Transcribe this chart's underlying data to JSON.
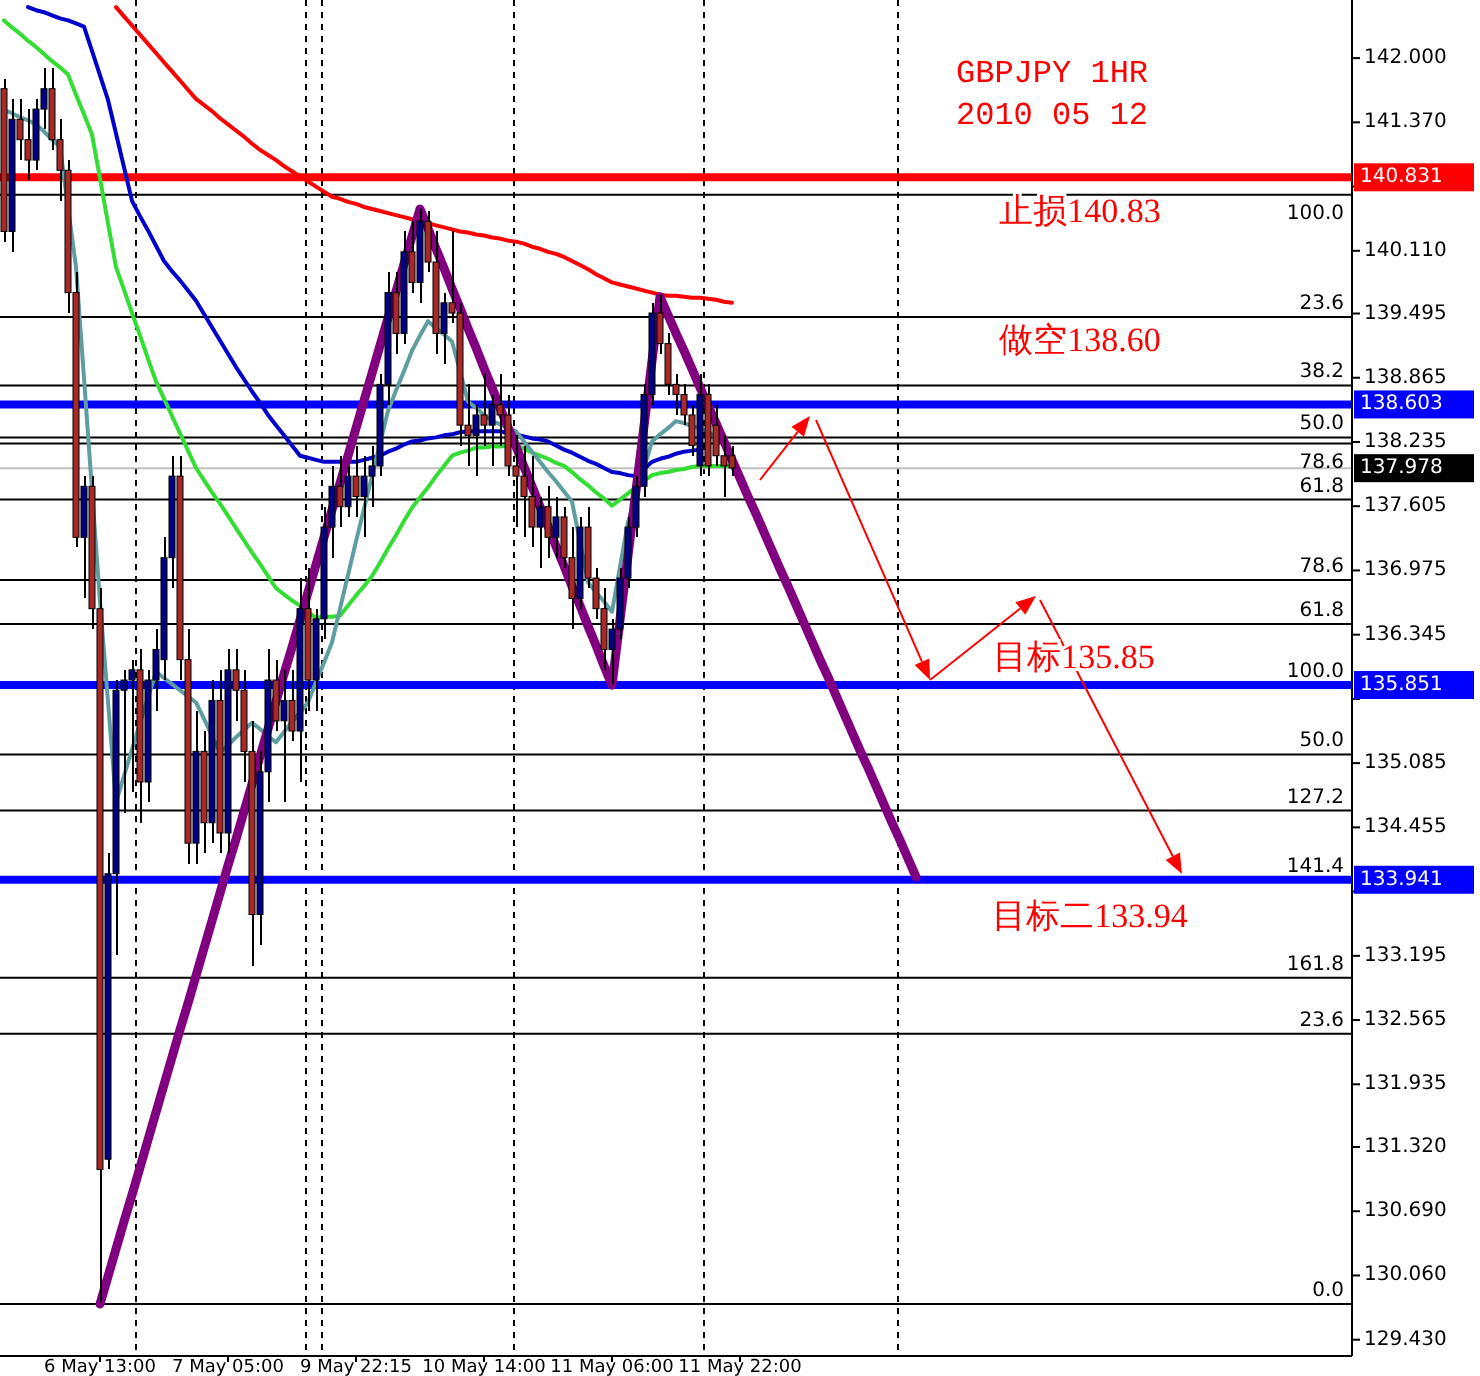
{
  "chart_data": {
    "type": "candlestick",
    "title": "GBPJPY 1HR",
    "subtitle": "2010 05 12",
    "ylim": [
      129.27,
      142.57
    ],
    "categories": [
      null,
      null,
      null,
      null,
      null,
      null,
      null,
      null,
      null,
      null,
      null,
      null,
      "6 May 13:00",
      null,
      null,
      null,
      null,
      null,
      null,
      null,
      null,
      null,
      null,
      null,
      null,
      null,
      null,
      null,
      "7 May 05:00",
      null,
      null,
      null,
      null,
      null,
      null,
      null,
      null,
      null,
      null,
      null,
      null,
      null,
      null,
      null,
      "9 May 22:15",
      null,
      null,
      null,
      null,
      null,
      null,
      null,
      null,
      null,
      null,
      null,
      null,
      null,
      null,
      null,
      "10 May 14:00",
      null,
      null,
      null,
      null,
      null,
      null,
      null,
      null,
      null,
      null,
      null,
      null,
      null,
      null,
      null,
      "11 May 06:00",
      null,
      null,
      null,
      null,
      null,
      null,
      null,
      null,
      null,
      null,
      null,
      null,
      null,
      null,
      null,
      "11 May 22:00",
      null,
      null,
      null,
      null,
      null,
      null,
      null,
      null,
      null,
      null,
      null,
      null,
      null,
      null,
      null,
      null,
      null,
      null,
      null,
      null,
      null,
      null,
      null,
      null,
      null,
      null,
      null,
      null,
      null,
      null,
      null,
      null,
      null,
      null,
      null,
      null,
      null,
      null,
      null,
      null,
      null,
      null,
      null,
      null,
      null,
      null,
      null,
      null,
      null,
      null,
      null,
      null,
      null,
      null,
      null,
      null,
      null,
      null,
      null,
      null,
      null,
      null,
      null,
      null,
      null,
      null,
      null,
      null,
      null,
      null,
      null,
      null,
      null,
      null,
      null,
      null
    ],
    "yticks": [
      {
        "value": 142,
        "label": "142.000"
      },
      {
        "value": 141.37,
        "label": "141.370"
      },
      {
        "value": 140.74,
        "label": null
      },
      {
        "value": 140.11,
        "label": "140.110"
      },
      139.495,
      138.865,
      138.235,
      137.605,
      136.975,
      136.345,
      {
        "value": 135.715,
        "label": null
      },
      135.085,
      134.455,
      {
        "value": 133.825,
        "label": null
      },
      133.195,
      132.565,
      131.935,
      {
        "value": 131.32,
        "label": "131.320"
      },
      {
        "value": 130.69,
        "label": "130.690"
      },
      {
        "value": 130.06,
        "label": "130.060"
      },
      {
        "value": 129.43,
        "label": "129.430"
      }
    ],
    "ohlc": [
      [
        141.7,
        141.8,
        140.2,
        140.3
      ],
      [
        140.3,
        141.6,
        140.1,
        141.4
      ],
      [
        141.4,
        141.6,
        141.0,
        141.2
      ],
      [
        141.2,
        141.5,
        140.8,
        141.0
      ],
      [
        141.0,
        141.6,
        140.9,
        141.5
      ],
      [
        141.5,
        141.9,
        141.3,
        141.7
      ],
      [
        141.7,
        141.9,
        141.1,
        141.2
      ],
      [
        141.2,
        141.4,
        140.6,
        140.9
      ],
      [
        140.9,
        141.0,
        139.5,
        139.7
      ],
      [
        139.7,
        139.9,
        137.2,
        137.3
      ],
      [
        137.3,
        137.9,
        136.7,
        137.8
      ],
      [
        137.8,
        137.9,
        136.4,
        136.6
      ],
      [
        136.6,
        136.8,
        129.8,
        131.1
      ],
      [
        131.2,
        134.2,
        131.1,
        134.0
      ],
      [
        134.0,
        135.9,
        133.2,
        135.8
      ],
      [
        135.8,
        136.0,
        134.6,
        135.9
      ],
      [
        135.9,
        136.1,
        134.8,
        136.0
      ],
      [
        136.0,
        136.2,
        134.5,
        134.9
      ],
      [
        134.9,
        136.0,
        134.7,
        135.9
      ],
      [
        135.9,
        136.4,
        135.6,
        136.2
      ],
      [
        136.1,
        137.3,
        135.9,
        137.1
      ],
      [
        137.1,
        138.1,
        136.8,
        137.9
      ],
      [
        137.9,
        138.1,
        135.9,
        136.1
      ],
      [
        136.1,
        136.4,
        134.1,
        134.3
      ],
      [
        134.3,
        135.6,
        134.1,
        135.2
      ],
      [
        135.2,
        135.4,
        134.2,
        134.5
      ],
      [
        134.5,
        135.9,
        134.3,
        135.7
      ],
      [
        135.7,
        136.0,
        134.2,
        134.4
      ],
      [
        134.4,
        136.2,
        134.2,
        136.0
      ],
      [
        136.0,
        136.2,
        135.5,
        135.8
      ],
      [
        135.8,
        136.0,
        134.9,
        135.2
      ],
      [
        135.2,
        135.5,
        133.1,
        133.6
      ],
      [
        133.6,
        135.2,
        133.3,
        135.0
      ],
      [
        135.0,
        136.2,
        134.7,
        135.9
      ],
      [
        135.9,
        136.1,
        135.4,
        135.5
      ],
      [
        135.5,
        136.0,
        134.7,
        135.7
      ],
      [
        135.7,
        136.0,
        135.3,
        135.4
      ],
      [
        135.4,
        136.9,
        134.9,
        136.6
      ],
      [
        136.6,
        137.0,
        135.6,
        135.9
      ],
      [
        135.9,
        136.6,
        135.6,
        136.5
      ],
      [
        136.5,
        137.6,
        136.3,
        137.4
      ],
      [
        137.4,
        138.0,
        137.1,
        137.8
      ],
      [
        137.8,
        138.1,
        137.4,
        137.6
      ],
      [
        137.6,
        138.0,
        137.5,
        137.9
      ],
      [
        137.9,
        138.2,
        137.5,
        137.7
      ],
      [
        137.7,
        138.1,
        137.3,
        137.9
      ],
      [
        137.9,
        138.2,
        137.6,
        138.0
      ],
      [
        138.0,
        138.9,
        137.9,
        138.8
      ],
      [
        138.8,
        139.9,
        138.6,
        139.7
      ],
      [
        139.7,
        139.9,
        139.1,
        139.3
      ],
      [
        139.3,
        140.3,
        139.2,
        140.1
      ],
      [
        140.1,
        140.4,
        139.7,
        139.8
      ],
      [
        139.8,
        140.52,
        139.6,
        140.4
      ],
      [
        140.4,
        140.5,
        139.9,
        140.0
      ],
      [
        140.0,
        140.3,
        139.1,
        139.3
      ],
      [
        139.3,
        139.7,
        139.0,
        139.6
      ],
      [
        139.6,
        140.3,
        139.4,
        139.5
      ],
      [
        139.5,
        139.6,
        138.2,
        138.4
      ],
      [
        138.4,
        138.8,
        138.0,
        138.3
      ],
      [
        138.3,
        138.6,
        137.9,
        138.5
      ],
      [
        138.5,
        138.9,
        138.2,
        138.4
      ],
      [
        138.4,
        138.7,
        138.0,
        138.6
      ],
      [
        138.6,
        138.9,
        138.2,
        138.5
      ],
      [
        138.5,
        138.7,
        137.9,
        138.0
      ],
      [
        138.0,
        138.3,
        137.4,
        137.9
      ],
      [
        137.9,
        138.2,
        137.3,
        137.7
      ],
      [
        137.7,
        138.1,
        137.2,
        137.4
      ],
      [
        137.4,
        137.7,
        137.0,
        137.6
      ],
      [
        137.6,
        137.8,
        137.1,
        137.3
      ],
      [
        137.3,
        137.7,
        137.1,
        137.5
      ],
      [
        137.5,
        137.6,
        137.0,
        137.1
      ],
      [
        137.1,
        137.4,
        136.4,
        136.7
      ],
      [
        136.7,
        137.5,
        136.6,
        137.4
      ],
      [
        137.4,
        137.6,
        136.8,
        136.9
      ],
      [
        136.9,
        137.0,
        136.5,
        136.6
      ],
      [
        136.6,
        136.8,
        136.0,
        136.2
      ],
      [
        136.2,
        136.5,
        135.85,
        136.4
      ],
      [
        136.4,
        137.0,
        136.3,
        136.9
      ],
      [
        136.9,
        137.5,
        136.8,
        137.4
      ],
      [
        137.4,
        137.9,
        137.3,
        137.8
      ],
      [
        137.8,
        138.8,
        137.7,
        138.7
      ],
      [
        138.7,
        139.6,
        138.6,
        139.5
      ],
      [
        139.5,
        139.68,
        139.1,
        139.2
      ],
      [
        139.2,
        139.3,
        138.7,
        138.8
      ],
      [
        138.8,
        138.9,
        138.5,
        138.7
      ],
      [
        138.7,
        138.8,
        138.4,
        138.5
      ],
      [
        138.5,
        138.6,
        138.1,
        138.2
      ],
      [
        138.0,
        138.9,
        137.9,
        138.7
      ],
      [
        138.7,
        138.8,
        137.9,
        138.0
      ],
      [
        138.4,
        138.6,
        138.0,
        138.1
      ],
      [
        138.1,
        138.3,
        137.7,
        138.0
      ],
      [
        138.1,
        138.2,
        137.9,
        137.98
      ],
      null,
      null,
      null,
      null,
      null,
      null,
      null,
      null,
      null,
      null,
      null,
      null,
      null,
      null,
      null,
      null,
      null,
      null,
      null,
      null,
      null,
      null,
      null,
      null,
      null,
      null,
      null,
      null,
      null,
      null,
      null,
      null,
      null,
      null,
      null,
      null,
      null,
      null,
      null,
      null,
      null,
      null,
      null,
      null,
      null,
      null,
      null,
      null,
      null,
      null,
      null,
      null,
      null,
      null,
      null,
      null,
      null,
      null,
      null,
      null,
      null,
      null,
      null,
      null,
      null,
      null,
      null,
      null,
      null,
      null,
      null,
      null,
      null,
      null,
      null,
      null,
      null
    ],
    "colors": [
      "#a52a2a",
      "#000080",
      "#a52a2a",
      "#a52a2a",
      "#000080",
      "#000080",
      "#a52a2a",
      "#a52a2a",
      "#a52a2a",
      "#a52a2a",
      "#000080",
      "#a52a2a",
      "#a52a2a",
      "#000080",
      "#000080",
      "#000080",
      "#000080",
      "#a52a2a",
      "#000080",
      "#000080",
      "#000080",
      "#000080",
      "#a52a2a",
      "#a52a2a",
      "#000080",
      "#a52a2a",
      "#000080",
      "#a52a2a",
      "#000080",
      "#a52a2a",
      "#a52a2a",
      "#a52a2a",
      "#000080",
      "#000080",
      "#a52a2a",
      "#000080",
      "#a52a2a",
      "#000080",
      "#a52a2a",
      "#000080",
      "#000080",
      "#000080",
      "#a52a2a",
      "#000080",
      "#a52a2a",
      "#000080",
      "#000080",
      "#000080",
      "#000080",
      "#a52a2a",
      "#000080",
      "#a52a2a",
      "#000080",
      "#a52a2a",
      "#a52a2a",
      "#000080",
      "#a52a2a",
      "#a52a2a",
      "#a52a2a",
      "#000080",
      "#a52a2a",
      "#000080",
      "#a52a2a",
      "#a52a2a",
      "#a52a2a",
      "#a52a2a",
      "#a52a2a",
      "#000080",
      "#a52a2a",
      "#000080",
      "#a52a2a",
      "#a52a2a",
      "#000080",
      "#a52a2a",
      "#a52a2a",
      "#a52a2a",
      "#000080",
      "#000080",
      "#000080",
      "#000080",
      "#000080",
      "#000080",
      "#a52a2a",
      "#a52a2a",
      "#a52a2a",
      "#a52a2a",
      "#a52a2a",
      "#000080",
      "#a52a2a",
      "#a52a2a",
      "#a52a2a",
      "#a52a2a",
      null,
      null,
      null,
      null,
      null,
      null,
      null,
      null,
      null,
      null,
      null,
      null,
      null,
      null,
      null,
      null,
      null,
      null,
      null,
      null,
      null,
      null,
      null,
      null,
      null,
      null,
      null,
      null,
      null,
      null,
      null,
      null,
      null,
      null,
      null,
      null,
      null,
      null,
      null,
      null,
      null,
      null,
      null,
      null,
      null,
      null,
      null,
      null,
      null,
      null,
      null,
      null,
      null,
      null,
      null,
      null,
      null,
      null,
      null,
      null,
      null,
      null,
      null,
      null,
      null,
      null,
      null,
      null,
      null,
      null,
      null,
      null,
      null,
      null,
      null,
      null,
      null
    ],
    "series": [
      {
        "type": "line",
        "color": "#ff0000",
        "values": [
          null,
          null,
          null,
          null,
          null,
          null,
          null,
          null,
          null,
          null,
          null,
          null,
          null,
          null,
          142.5,
          142.41,
          142.32,
          142.23,
          142.14,
          142.05,
          141.96,
          141.87,
          141.78,
          141.69,
          141.6,
          141.54,
          141.48,
          141.41,
          141.35,
          141.29,
          141.23,
          141.16,
          141.1,
          141.05,
          141.0,
          140.94,
          140.89,
          140.84,
          140.79,
          140.74,
          140.69,
          140.64,
          140.62,
          140.59,
          140.57,
          140.54,
          140.52,
          140.5,
          140.48,
          140.46,
          140.44,
          140.42,
          140.4,
          140.38,
          140.36,
          140.34,
          140.32,
          140.3,
          140.29,
          140.27,
          140.26,
          140.24,
          140.23,
          140.21,
          140.2,
          140.18,
          140.15,
          140.13,
          140.1,
          140.08,
          140.05,
          140.01,
          139.97,
          139.93,
          139.88,
          139.84,
          139.8,
          139.78,
          139.76,
          139.74,
          139.72,
          139.7,
          139.68,
          139.67,
          139.67,
          139.66,
          139.65,
          139.65,
          139.64,
          139.63,
          139.61,
          139.6,
          null,
          null,
          null,
          null,
          null,
          null,
          null,
          null,
          null,
          null,
          null,
          null,
          null,
          null,
          null,
          null,
          null,
          null,
          null,
          null,
          null,
          null,
          null,
          null,
          null,
          null,
          null,
          null,
          null,
          null,
          null,
          null,
          null,
          null,
          null,
          null,
          null,
          null,
          null,
          null,
          null,
          null,
          null,
          null,
          null,
          null,
          null,
          null,
          null,
          null,
          null,
          null,
          null,
          null,
          null,
          null,
          null,
          null,
          null,
          null,
          null,
          null,
          null,
          null,
          null,
          null,
          null,
          null,
          null,
          null,
          null,
          null,
          null,
          null,
          null,
          null,
          null
        ]
      },
      {
        "type": "line",
        "color": "#0000cc",
        "values": [
          null,
          null,
          null,
          142.5,
          142.47,
          142.45,
          142.42,
          142.39,
          142.37,
          142.34,
          142.31,
          142.07,
          141.83,
          141.59,
          141.26,
          140.93,
          140.6,
          140.45,
          140.31,
          140.16,
          140.01,
          139.91,
          139.82,
          139.72,
          139.62,
          139.49,
          139.36,
          139.23,
          139.1,
          138.97,
          138.85,
          138.73,
          138.62,
          138.5,
          138.4,
          138.3,
          138.2,
          138.1,
          138.08,
          138.06,
          138.04,
          138.04,
          138.04,
          138.04,
          138.04,
          138.06,
          138.08,
          138.1,
          138.14,
          138.17,
          138.21,
          138.24,
          138.25,
          138.27,
          138.28,
          138.3,
          138.31,
          138.33,
          138.34,
          138.34,
          138.34,
          138.34,
          138.34,
          138.32,
          138.31,
          138.29,
          138.27,
          138.26,
          138.24,
          138.2,
          138.16,
          138.13,
          138.09,
          138.05,
          138.02,
          137.98,
          137.94,
          137.93,
          137.91,
          137.9,
          137.97,
          138.04,
          138.07,
          138.09,
          138.12,
          138.14,
          138.15,
          138.16,
          null,
          null,
          null,
          null,
          null,
          null,
          null,
          null,
          null,
          null,
          null,
          null,
          null,
          null,
          null,
          null,
          null,
          null,
          null,
          null,
          null,
          null,
          null,
          null,
          null,
          null,
          null,
          null,
          null,
          null,
          null,
          null,
          null,
          null,
          null,
          null,
          null,
          null,
          null,
          null,
          null,
          null,
          null,
          null,
          null,
          null,
          null,
          null,
          null,
          null,
          null,
          null,
          null,
          null,
          null,
          null,
          null,
          null,
          null,
          null,
          null,
          null,
          null,
          null,
          null,
          null,
          null,
          null,
          null,
          null,
          null,
          null,
          null,
          null,
          null,
          null,
          null,
          null,
          null,
          null,
          null
        ]
      },
      {
        "type": "line",
        "color": "#33dd33",
        "values": [
          142.37,
          142.3,
          142.24,
          142.17,
          142.11,
          142.04,
          141.97,
          141.91,
          141.84,
          141.64,
          141.45,
          141.25,
          140.82,
          140.38,
          139.95,
          139.73,
          139.5,
          139.28,
          139.05,
          138.83,
          138.66,
          138.49,
          138.32,
          138.15,
          137.98,
          137.86,
          137.74,
          137.63,
          137.51,
          137.39,
          137.27,
          137.15,
          137.04,
          136.92,
          136.8,
          136.74,
          136.68,
          136.63,
          136.57,
          136.51,
          136.52,
          136.52,
          136.53,
          136.63,
          136.73,
          136.82,
          136.92,
          137.05,
          137.19,
          137.32,
          137.46,
          137.59,
          137.69,
          137.79,
          137.9,
          138.0,
          138.1,
          138.13,
          138.15,
          138.18,
          138.18,
          138.19,
          138.19,
          138.2,
          138.2,
          138.17,
          138.13,
          138.1,
          138.07,
          138.03,
          138.0,
          137.94,
          137.87,
          137.81,
          137.74,
          137.68,
          137.61,
          137.67,
          137.73,
          137.79,
          137.85,
          137.91,
          137.93,
          137.94,
          137.96,
          137.97,
          137.99,
          138.0,
          138.0,
          138.0,
          138.0,
          138.0,
          null,
          null,
          null,
          null,
          null,
          null,
          null,
          null,
          null,
          null,
          null,
          null,
          null,
          null,
          null,
          null,
          null,
          null,
          null,
          null,
          null,
          null,
          null,
          null,
          null,
          null,
          null,
          null,
          null,
          null,
          null,
          null,
          null,
          null,
          null,
          null,
          null,
          null,
          null,
          null,
          null,
          null,
          null,
          null,
          null,
          null,
          null,
          null,
          null,
          null,
          null,
          null,
          null,
          null,
          null,
          null,
          null,
          null,
          null,
          null,
          null,
          null,
          null,
          null,
          null,
          null,
          null,
          null,
          null,
          null,
          null,
          null,
          null,
          null,
          null,
          null,
          null
        ]
      },
      {
        "type": "line",
        "color": "#5f9ea0",
        "values": [
          141.49,
          141.46,
          141.42,
          141.39,
          141.35,
          141.28,
          141.2,
          141.13,
          140.54,
          139.95,
          138.86,
          137.76,
          136.67,
          135.69,
          134.7,
          134.96,
          135.22,
          135.48,
          135.73,
          135.98,
          135.92,
          135.86,
          135.8,
          135.74,
          135.68,
          135.52,
          135.35,
          135.19,
          135.26,
          135.34,
          135.41,
          135.48,
          135.42,
          135.35,
          135.29,
          135.39,
          135.49,
          135.58,
          135.68,
          135.88,
          136.07,
          136.27,
          136.6,
          136.93,
          137.26,
          137.58,
          137.9,
          138.22,
          138.54,
          138.74,
          138.93,
          139.13,
          139.28,
          139.42,
          139.35,
          139.29,
          139.22,
          138.93,
          138.63,
          138.57,
          138.5,
          138.44,
          138.41,
          138.37,
          138.34,
          138.24,
          138.14,
          138.04,
          137.94,
          137.85,
          137.75,
          137.65,
          137.26,
          136.86,
          136.76,
          136.67,
          136.57,
          137.01,
          137.45,
          137.71,
          137.98,
          138.24,
          138.31,
          138.37,
          138.44,
          138.42,
          138.39,
          138.37,
          138.34,
          138.27,
          138.21,
          138.14,
          null,
          null,
          null,
          null,
          null,
          null,
          null,
          null,
          null,
          null,
          null,
          null,
          null,
          null,
          null,
          null,
          null,
          null,
          null,
          null,
          null,
          null,
          null,
          null,
          null,
          null,
          null,
          null,
          null,
          null,
          null,
          null,
          null,
          null,
          null,
          null,
          null,
          null,
          null,
          null,
          null,
          null,
          null,
          null,
          null,
          null,
          null,
          null,
          null,
          null,
          null,
          null,
          null,
          null,
          null,
          null,
          null,
          null,
          null,
          null,
          null,
          null,
          null,
          null,
          null,
          null,
          null,
          null,
          null,
          null,
          null,
          null,
          null,
          null,
          null,
          null,
          null
        ]
      },
      {
        "type": "line",
        "color": "#800080",
        "values": [
          null,
          null,
          null,
          null,
          null,
          null,
          null,
          null,
          null,
          null,
          null,
          null,
          129.78,
          130.05,
          130.32,
          130.59,
          130.85,
          131.12,
          131.39,
          131.66,
          131.93,
          132.2,
          132.47,
          132.73,
          133.0,
          133.27,
          133.54,
          133.81,
          134.08,
          134.34,
          134.61,
          134.88,
          135.15,
          135.42,
          135.69,
          135.96,
          136.22,
          136.49,
          136.76,
          137.03,
          137.3,
          137.57,
          137.83,
          138.1,
          138.37,
          138.64,
          138.91,
          139.18,
          139.45,
          139.71,
          139.98,
          140.25,
          140.52,
          140.33,
          140.13,
          139.94,
          139.74,
          139.55,
          139.35,
          139.16,
          138.96,
          138.77,
          138.57,
          138.38,
          138.19,
          137.99,
          137.8,
          137.6,
          137.41,
          137.21,
          137.02,
          136.82,
          136.63,
          136.43,
          136.24,
          136.04,
          135.85,
          136.49,
          137.12,
          137.76,
          138.39,
          139.03,
          139.66,
          139.48,
          139.3,
          139.13,
          138.95,
          138.77,
          138.59,
          138.42,
          138.24,
          138.06,
          137.88,
          137.7,
          137.53,
          137.35,
          137.17,
          136.99,
          136.82,
          136.64,
          136.46,
          136.28,
          136.1,
          135.93,
          135.75,
          135.57,
          135.39,
          135.21,
          135.04,
          134.86,
          134.68,
          134.5,
          134.33,
          134.15,
          133.97,
          null,
          null,
          null,
          null,
          null,
          null,
          null,
          null,
          null,
          null,
          null,
          null,
          null,
          null,
          null,
          null,
          null,
          null,
          null,
          null,
          null,
          null,
          null,
          null,
          null,
          null,
          null,
          null,
          null,
          null,
          null,
          null,
          null,
          null,
          null,
          null,
          null,
          null,
          null,
          null,
          null,
          null,
          null,
          null,
          null,
          null,
          null,
          null,
          null,
          null,
          null,
          null,
          null,
          null
        ]
      }
    ],
    "ref_lines": [
      {
        "axis": "y",
        "value": 140.66,
        "color": "#000000"
      },
      {
        "axis": "y",
        "value": 139.46,
        "color": "#000000"
      },
      {
        "axis": "y",
        "value": 138.79,
        "color": "#000000"
      },
      {
        "axis": "y",
        "value": 138.28,
        "color": "#000000"
      },
      {
        "axis": "y",
        "value": 138.22,
        "color": "#000000"
      },
      {
        "axis": "y",
        "value": 137.67,
        "color": "#000000"
      },
      {
        "axis": "y",
        "value": 136.88,
        "color": "#000000"
      },
      {
        "axis": "y",
        "value": 136.45,
        "color": "#000000"
      },
      {
        "axis": "y",
        "value": 135.17,
        "color": "#000000"
      },
      {
        "axis": "y",
        "value": 134.62,
        "color": "#000000"
      },
      {
        "axis": "y",
        "value": 132.98,
        "color": "#000000"
      },
      {
        "axis": "y",
        "value": 132.43,
        "color": "#000000"
      },
      {
        "axis": "y",
        "value": 129.78,
        "color": "#000000"
      },
      {
        "axis": "y",
        "value": 137.978,
        "label": "137.978",
        "color": "#c0c0c0"
      },
      {
        "axis": "y",
        "value": 140.831,
        "label": "140.831",
        "color": "#ff0000"
      },
      {
        "axis": "y",
        "value": 138.603,
        "label": "138.603",
        "color": "#0000ff"
      },
      {
        "axis": "y",
        "value": 135.851,
        "label": "135.851",
        "color": "#0000ff"
      },
      {
        "axis": "y",
        "value": 133.941,
        "label": "133.941",
        "color": "#0000ff"
      }
    ],
    "annotations": [
      {
        "text": "止损140.83",
        "y": 140.831
      },
      {
        "text": "做空138.60",
        "y": 138.603
      },
      {
        "text": "目标135.85",
        "y": 135.851
      },
      {
        "text": "目标二133.94",
        "y": 133.941
      },
      {
        "text": "100.0",
        "y": 140.66
      },
      {
        "text": "23.6",
        "y": 139.46
      },
      {
        "text": "38.2",
        "y": 138.79
      },
      {
        "text": "50.0",
        "y": 138.28
      },
      {
        "text": "78.6",
        "y": 138.22
      },
      {
        "text": "61.8",
        "y": 137.67
      },
      {
        "text": "78.6",
        "y": 136.88
      },
      {
        "text": "61.8",
        "y": 136.45
      },
      {
        "text": "100.0",
        "y": 135.851
      },
      {
        "text": "50.0",
        "y": 135.17
      },
      {
        "text": "127.2",
        "y": 134.62
      },
      {
        "text": "141.4",
        "y": 133.941
      },
      {
        "text": "161.8",
        "y": 132.98
      },
      {
        "text": "23.6",
        "y": 132.43
      },
      {
        "text": "0.0",
        "y": 129.78
      }
    ]
  }
}
